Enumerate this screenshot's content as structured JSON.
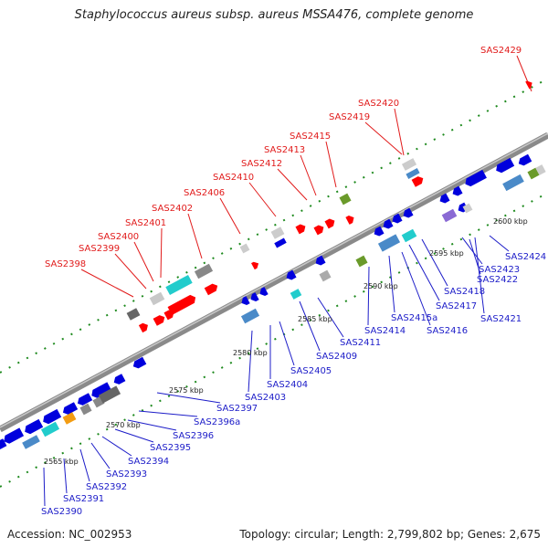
{
  "title": "Staphylococcus aureus subsp. aureus MSSA476, complete genome",
  "accession": "Accession: NC_002953",
  "topology": "Topology: circular; Length: 2,799,802 bp; Genes: 2,675",
  "colors": {
    "forward_label": "#e11b1b",
    "reverse_label": "#1c1cc8",
    "cds_forward": "#ff0000",
    "cds_reverse": "#0000ee",
    "backbone": "#7a7a7a",
    "tick": "#1e8a1e"
  },
  "kbp_ticks": [
    {
      "label": "2565 kbp"
    },
    {
      "label": "2570 kbp"
    },
    {
      "label": "2575 kbp"
    },
    {
      "label": "2580 kbp"
    },
    {
      "label": "2585 kbp"
    },
    {
      "label": "2590 kbp"
    },
    {
      "label": "2595 kbp"
    },
    {
      "label": "2600 kbp"
    }
  ],
  "top_labels": [
    "SAS2398",
    "SAS2399",
    "SAS2400",
    "SAS2401",
    "SAS2402",
    "SAS2406",
    "SAS2410",
    "SAS2412",
    "SAS2413",
    "SAS2415",
    "SAS2419",
    "SAS2420",
    "SAS2429"
  ],
  "bottom_labels": [
    "SAS2390",
    "SAS2391",
    "SAS2392",
    "SAS2393",
    "SAS2394",
    "SAS2395",
    "SAS2396",
    "SAS2396a",
    "SAS2397",
    "SAS2403",
    "SAS2404",
    "SAS2405",
    "SAS2409",
    "SAS2411",
    "SAS2414",
    "SAS2415a",
    "SAS2416",
    "SAS2417",
    "SAS2418",
    "SAS2421",
    "SAS2422",
    "SAS2423",
    "SAS2424"
  ]
}
